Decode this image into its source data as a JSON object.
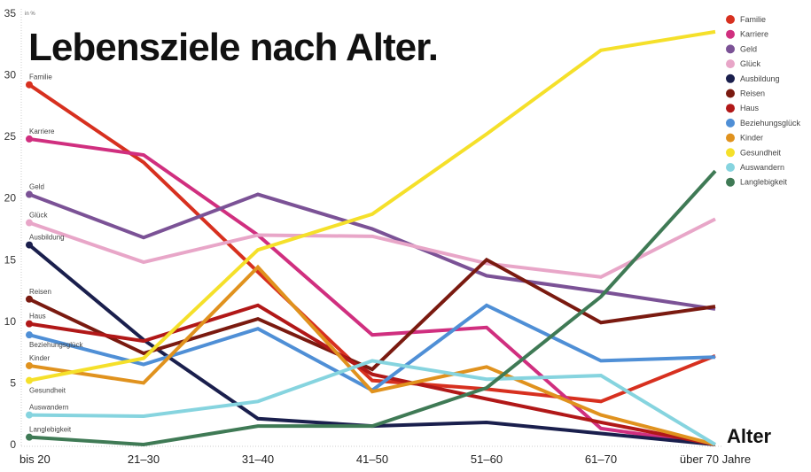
{
  "chart_data": {
    "type": "line",
    "title": "Lebensziele nach Alter.",
    "xlabel": "Alter",
    "ylabel": "in %",
    "ylim": [
      0,
      35
    ],
    "yticks": [
      "0",
      "5",
      "10",
      "15",
      "20",
      "25",
      "30",
      "35"
    ],
    "grid": false,
    "legend": "top-right",
    "categories": [
      "bis 20",
      "21–30",
      "31–40",
      "41–50",
      "51–60",
      "61–70",
      "über 70 Jahre"
    ],
    "series": [
      {
        "name": "Familie",
        "color": "#d7301f",
        "values": [
          29.2,
          22.9,
          14.0,
          5.2,
          4.5,
          3.5,
          7.2
        ]
      },
      {
        "name": "Karriere",
        "color": "#d02f7f",
        "values": [
          24.8,
          23.5,
          17.0,
          8.9,
          9.5,
          1.3,
          0
        ]
      },
      {
        "name": "Geld",
        "color": "#7b5296",
        "values": [
          20.3,
          16.8,
          20.3,
          17.5,
          13.7,
          12.4,
          11.0
        ]
      },
      {
        "name": "Glück",
        "color": "#e8a6c8",
        "values": [
          18.0,
          14.8,
          17.0,
          16.9,
          14.7,
          13.6,
          18.3
        ]
      },
      {
        "name": "Ausbildung",
        "color": "#1a1f4d",
        "values": [
          16.2,
          8.5,
          2.1,
          1.5,
          1.8,
          0.9,
          0
        ]
      },
      {
        "name": "Reisen",
        "color": "#7a1a10",
        "values": [
          11.8,
          7.4,
          10.2,
          6.1,
          15.0,
          9.9,
          11.2
        ]
      },
      {
        "name": "Haus",
        "color": "#b11818",
        "values": [
          9.8,
          8.4,
          11.3,
          5.7,
          3.7,
          1.8,
          0
        ]
      },
      {
        "name": "Beziehungsglück",
        "color": "#4f8fd6",
        "values": [
          8.9,
          6.5,
          9.4,
          4.4,
          11.3,
          6.8,
          7.1
        ]
      },
      {
        "name": "Kinder",
        "color": "#e0921e",
        "values": [
          6.4,
          5.0,
          14.4,
          4.3,
          6.3,
          2.4,
          0
        ]
      },
      {
        "name": "Gesundheit",
        "color": "#f5e02a",
        "values": [
          5.2,
          7.0,
          15.8,
          18.7,
          25.2,
          32.0,
          33.5
        ]
      },
      {
        "name": "Auswandern",
        "color": "#86d4df",
        "values": [
          2.4,
          2.3,
          3.5,
          6.8,
          5.3,
          5.6,
          0
        ]
      },
      {
        "name": "Langlebigkeit",
        "color": "#3f7a55",
        "values": [
          0.6,
          0,
          1.5,
          1.5,
          4.6,
          12.0,
          22.2
        ]
      }
    ]
  }
}
